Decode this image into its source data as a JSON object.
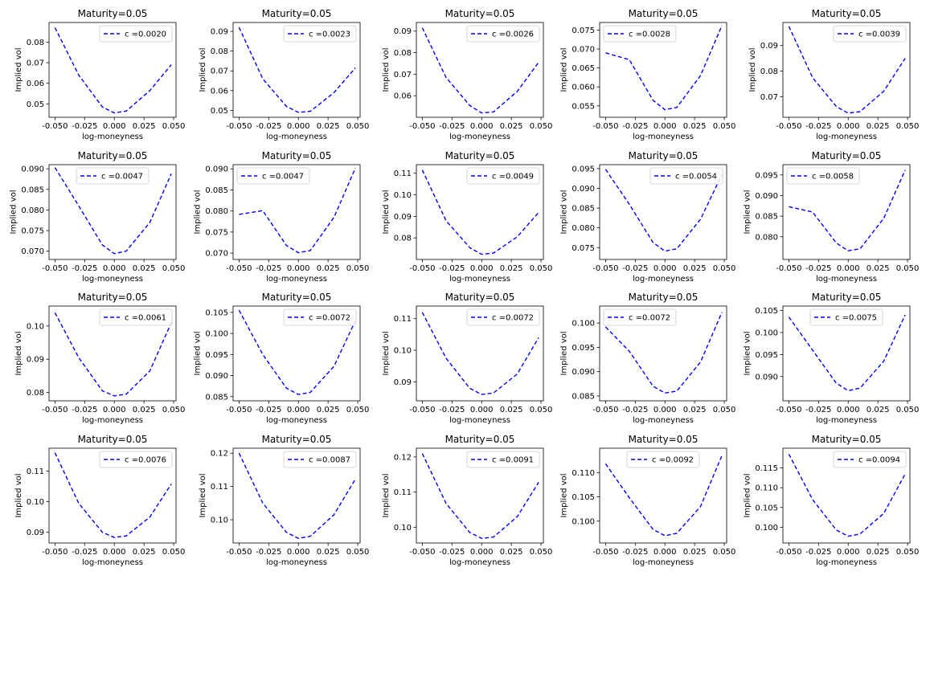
{
  "figure": {
    "rows": 4,
    "cols": 5,
    "background": "#ffffff",
    "line_color": "#0000ff",
    "line_style": "dashed"
  },
  "chart_data": [
    {
      "type": "line",
      "title": "Maturity=0.05",
      "xlabel": "log-moneyness",
      "ylabel": "Implied vol",
      "xlim": [
        -0.055,
        0.052
      ],
      "ylim": [
        0.0435,
        0.0895
      ],
      "xticks": [
        "-0.050",
        "-0.025",
        "0.000",
        "0.025",
        "0.050"
      ],
      "yticks": [
        "0.05",
        "0.06",
        "0.07",
        "0.08"
      ],
      "legend_loc": "upper right",
      "series": [
        {
          "name": "c =0.0020",
          "x": [
            -0.05,
            -0.03,
            -0.01,
            0.0,
            0.01,
            0.03,
            0.048
          ],
          "y": [
            0.087,
            0.064,
            0.0485,
            0.0456,
            0.0465,
            0.0565,
            0.069
          ]
        }
      ]
    },
    {
      "type": "line",
      "title": "Maturity=0.05",
      "xlabel": "log-moneyness",
      "ylabel": "Implied vol",
      "xlim": [
        -0.055,
        0.052
      ],
      "ylim": [
        0.0465,
        0.0945
      ],
      "xticks": [
        "-0.050",
        "-0.025",
        "0.000",
        "0.025",
        "0.050"
      ],
      "yticks": [
        "0.05",
        "0.06",
        "0.07",
        "0.08",
        "0.09"
      ],
      "legend_loc": "upper right",
      "series": [
        {
          "name": "c =0.0023",
          "x": [
            -0.05,
            -0.03,
            -0.01,
            0.0,
            0.01,
            0.03,
            0.048
          ],
          "y": [
            0.092,
            0.066,
            0.052,
            0.049,
            0.0495,
            0.059,
            0.0715
          ]
        }
      ]
    },
    {
      "type": "line",
      "title": "Maturity=0.05",
      "xlabel": "log-moneyness",
      "ylabel": "Implied vol",
      "xlim": [
        -0.055,
        0.052
      ],
      "ylim": [
        0.05,
        0.094
      ],
      "xticks": [
        "-0.050",
        "-0.025",
        "0.000",
        "0.025",
        "0.050"
      ],
      "yticks": [
        "0.06",
        "0.07",
        "0.08",
        "0.09"
      ],
      "legend_loc": "upper right",
      "series": [
        {
          "name": "c =0.0026",
          "x": [
            -0.05,
            -0.03,
            -0.01,
            0.0,
            0.01,
            0.03,
            0.048
          ],
          "y": [
            0.0915,
            0.0685,
            0.0555,
            0.052,
            0.0525,
            0.062,
            0.0755
          ]
        }
      ]
    },
    {
      "type": "line",
      "title": "Maturity=0.05",
      "xlabel": "log-moneyness",
      "ylabel": "Implied vol",
      "xlim": [
        -0.055,
        0.052
      ],
      "ylim": [
        0.052,
        0.077
      ],
      "xticks": [
        "-0.050",
        "-0.025",
        "0.000",
        "0.025",
        "0.050"
      ],
      "yticks": [
        "0.055",
        "0.060",
        "0.065",
        "0.070",
        "0.075"
      ],
      "legend_loc": "upper left",
      "series": [
        {
          "name": "c =0.0028",
          "x": [
            -0.05,
            -0.03,
            -0.01,
            0.0,
            0.01,
            0.03,
            0.048
          ],
          "y": [
            0.069,
            0.0672,
            0.0565,
            0.054,
            0.0546,
            0.063,
            0.0762
          ]
        }
      ]
    },
    {
      "type": "line",
      "title": "Maturity=0.05",
      "xlabel": "log-moneyness",
      "ylabel": "Implied vol",
      "xlim": [
        -0.055,
        0.052
      ],
      "ylim": [
        0.062,
        0.099
      ],
      "xticks": [
        "-0.050",
        "-0.025",
        "0.000",
        "0.025",
        "0.050"
      ],
      "yticks": [
        "0.07",
        "0.08",
        "0.09"
      ],
      "legend_loc": "upper right",
      "series": [
        {
          "name": "c =0.0039",
          "x": [
            -0.05,
            -0.03,
            -0.01,
            0.0,
            0.01,
            0.03,
            0.048
          ],
          "y": [
            0.0975,
            0.0775,
            0.0662,
            0.0636,
            0.0642,
            0.0722,
            0.085
          ]
        }
      ]
    },
    {
      "type": "line",
      "title": "Maturity=0.05",
      "xlabel": "log-moneyness",
      "ylabel": "Implied vol",
      "xlim": [
        -0.055,
        0.052
      ],
      "ylim": [
        0.068,
        0.091
      ],
      "xticks": [
        "-0.050",
        "-0.025",
        "0.000",
        "0.025",
        "0.050"
      ],
      "yticks": [
        "0.070",
        "0.075",
        "0.080",
        "0.085",
        "0.090"
      ],
      "legend_loc": "upper center",
      "series": [
        {
          "name": "c =0.0047",
          "x": [
            -0.05,
            -0.03,
            -0.01,
            0.0,
            0.01,
            0.03,
            0.048
          ],
          "y": [
            0.0903,
            0.081,
            0.0715,
            0.0694,
            0.07,
            0.077,
            0.0888
          ]
        }
      ]
    },
    {
      "type": "line",
      "title": "Maturity=0.05",
      "xlabel": "log-moneyness",
      "ylabel": "Implied vol",
      "xlim": [
        -0.055,
        0.052
      ],
      "ylim": [
        0.0685,
        0.091
      ],
      "xticks": [
        "-0.050",
        "-0.025",
        "0.000",
        "0.025",
        "0.050"
      ],
      "yticks": [
        "0.070",
        "0.075",
        "0.080",
        "0.085",
        "0.090"
      ],
      "legend_loc": "upper left",
      "series": [
        {
          "name": "c =0.0047",
          "x": [
            -0.05,
            -0.03,
            -0.01,
            0.0,
            0.01,
            0.03,
            0.048
          ],
          "y": [
            0.0792,
            0.0801,
            0.0718,
            0.0701,
            0.0706,
            0.0785,
            0.0902
          ]
        }
      ]
    },
    {
      "type": "line",
      "title": "Maturity=0.05",
      "xlabel": "log-moneyness",
      "ylabel": "Implied vol",
      "xlim": [
        -0.055,
        0.052
      ],
      "ylim": [
        0.07,
        0.114
      ],
      "xticks": [
        "-0.050",
        "-0.025",
        "0.000",
        "0.025",
        "0.050"
      ],
      "yticks": [
        "0.08",
        "0.09",
        "0.10",
        "0.11"
      ],
      "legend_loc": "upper right",
      "series": [
        {
          "name": "c =0.0049",
          "x": [
            -0.05,
            -0.03,
            -0.01,
            0.0,
            0.01,
            0.03,
            0.048
          ],
          "y": [
            0.1115,
            0.088,
            0.0755,
            0.0724,
            0.073,
            0.0805,
            0.0918
          ]
        }
      ]
    },
    {
      "type": "line",
      "title": "Maturity=0.05",
      "xlabel": "log-moneyness",
      "ylabel": "Implied vol",
      "xlim": [
        -0.055,
        0.052
      ],
      "ylim": [
        0.072,
        0.096
      ],
      "xticks": [
        "-0.050",
        "-0.025",
        "0.000",
        "0.025",
        "0.050"
      ],
      "yticks": [
        "0.075",
        "0.080",
        "0.085",
        "0.090",
        "0.095"
      ],
      "legend_loc": "upper right",
      "series": [
        {
          "name": "c =0.0054",
          "x": [
            -0.05,
            -0.03,
            -0.01,
            0.0,
            0.01,
            0.03,
            0.048
          ],
          "y": [
            0.0948,
            0.086,
            0.0763,
            0.0741,
            0.0747,
            0.0822,
            0.0935
          ]
        }
      ]
    },
    {
      "type": "line",
      "title": "Maturity=0.05",
      "xlabel": "log-moneyness",
      "ylabel": "Implied vol",
      "xlim": [
        -0.055,
        0.052
      ],
      "ylim": [
        0.0745,
        0.0975
      ],
      "xticks": [
        "-0.050",
        "-0.025",
        "0.000",
        "0.025",
        "0.050"
      ],
      "yticks": [
        "0.080",
        "0.085",
        "0.090",
        "0.095"
      ],
      "legend_loc": "upper left",
      "series": [
        {
          "name": "c =0.0058",
          "x": [
            -0.05,
            -0.03,
            -0.01,
            0.0,
            0.01,
            0.03,
            0.048
          ],
          "y": [
            0.0873,
            0.086,
            0.0785,
            0.0766,
            0.0771,
            0.0845,
            0.0962
          ]
        }
      ]
    },
    {
      "type": "line",
      "title": "Maturity=0.05",
      "xlabel": "log-moneyness",
      "ylabel": "Implied vol",
      "xlim": [
        -0.055,
        0.052
      ],
      "ylim": [
        0.0775,
        0.106
      ],
      "xticks": [
        "-0.050",
        "-0.025",
        "0.000",
        "0.025",
        "0.050"
      ],
      "yticks": [
        "0.08",
        "0.09",
        "0.10"
      ],
      "legend_loc": "upper right",
      "series": [
        {
          "name": "c =0.0061",
          "x": [
            -0.05,
            -0.03,
            -0.01,
            0.0,
            0.01,
            0.03,
            0.048
          ],
          "y": [
            0.104,
            0.0905,
            0.0805,
            0.079,
            0.0795,
            0.0865,
            0.101
          ]
        }
      ]
    },
    {
      "type": "line",
      "title": "Maturity=0.05",
      "xlabel": "log-moneyness",
      "ylabel": "Implied vol",
      "xlim": [
        -0.055,
        0.052
      ],
      "ylim": [
        0.084,
        0.1065
      ],
      "xticks": [
        "-0.050",
        "-0.025",
        "0.000",
        "0.025",
        "0.050"
      ],
      "yticks": [
        "0.085",
        "0.090",
        "0.095",
        "0.100",
        "0.105"
      ],
      "legend_loc": "upper right",
      "series": [
        {
          "name": "c =0.0072",
          "x": [
            -0.05,
            -0.03,
            -0.01,
            0.0,
            0.01,
            0.03,
            0.048
          ],
          "y": [
            0.1055,
            0.095,
            0.087,
            0.0855,
            0.086,
            0.0922,
            0.103
          ]
        }
      ]
    },
    {
      "type": "line",
      "title": "Maturity=0.05",
      "xlabel": "log-moneyness",
      "ylabel": "Implied vol",
      "xlim": [
        -0.055,
        0.052
      ],
      "ylim": [
        0.084,
        0.114
      ],
      "xticks": [
        "-0.050",
        "-0.025",
        "0.000",
        "0.025",
        "0.050"
      ],
      "yticks": [
        "0.09",
        "0.10",
        "0.11"
      ],
      "legend_loc": "upper right",
      "series": [
        {
          "name": "c =0.0072",
          "x": [
            -0.05,
            -0.03,
            -0.01,
            0.0,
            0.01,
            0.03,
            0.048
          ],
          "y": [
            0.112,
            0.0975,
            0.088,
            0.086,
            0.0865,
            0.0925,
            0.104
          ]
        }
      ]
    },
    {
      "type": "line",
      "title": "Maturity=0.05",
      "xlabel": "log-moneyness",
      "ylabel": "Implied vol",
      "xlim": [
        -0.055,
        0.052
      ],
      "ylim": [
        0.084,
        0.1035
      ],
      "xticks": [
        "-0.050",
        "-0.025",
        "0.000",
        "0.025",
        "0.050"
      ],
      "yticks": [
        "0.085",
        "0.090",
        "0.095",
        "0.100"
      ],
      "legend_loc": "upper left",
      "series": [
        {
          "name": "c =0.0072",
          "x": [
            -0.05,
            -0.03,
            -0.01,
            0.0,
            0.01,
            0.03,
            0.048
          ],
          "y": [
            0.0992,
            0.0942,
            0.087,
            0.0856,
            0.086,
            0.092,
            0.1022
          ]
        }
      ]
    },
    {
      "type": "line",
      "title": "Maturity=0.05",
      "xlabel": "log-moneyness",
      "ylabel": "Implied vol",
      "xlim": [
        -0.055,
        0.052
      ],
      "ylim": [
        0.0845,
        0.106
      ],
      "xticks": [
        "-0.050",
        "-0.025",
        "0.000",
        "0.025",
        "0.050"
      ],
      "yticks": [
        "0.090",
        "0.095",
        "0.100",
        "0.105"
      ],
      "legend_loc": "upper center",
      "series": [
        {
          "name": "c =0.0075",
          "x": [
            -0.05,
            -0.03,
            -0.01,
            0.0,
            0.01,
            0.03,
            0.048
          ],
          "y": [
            0.1035,
            0.096,
            0.0885,
            0.0868,
            0.0874,
            0.0935,
            0.104
          ]
        }
      ]
    },
    {
      "type": "line",
      "title": "Maturity=0.05",
      "xlabel": "log-moneyness",
      "ylabel": "Implied vol",
      "xlim": [
        -0.055,
        0.052
      ],
      "ylim": [
        0.0865,
        0.1175
      ],
      "xticks": [
        "-0.050",
        "-0.025",
        "0.000",
        "0.025",
        "0.050"
      ],
      "yticks": [
        "0.09",
        "0.10",
        "0.11"
      ],
      "legend_loc": "upper right",
      "series": [
        {
          "name": "c =0.0076",
          "x": [
            -0.05,
            -0.03,
            -0.01,
            0.0,
            0.01,
            0.03,
            0.048
          ],
          "y": [
            0.116,
            0.0995,
            0.09,
            0.0883,
            0.0888,
            0.095,
            0.1058
          ]
        }
      ]
    },
    {
      "type": "line",
      "title": "Maturity=0.05",
      "xlabel": "log-moneyness",
      "ylabel": "Implied vol",
      "xlim": [
        -0.055,
        0.052
      ],
      "ylim": [
        0.093,
        0.1215
      ],
      "xticks": [
        "-0.050",
        "-0.025",
        "0.000",
        "0.025",
        "0.050"
      ],
      "yticks": [
        "0.10",
        "0.11",
        "0.12"
      ],
      "legend_loc": "upper right",
      "series": [
        {
          "name": "c =0.0087",
          "x": [
            -0.05,
            -0.03,
            -0.01,
            0.0,
            0.01,
            0.03,
            0.048
          ],
          "y": [
            0.12,
            0.105,
            0.0962,
            0.0944,
            0.095,
            0.1015,
            0.1122
          ]
        }
      ]
    },
    {
      "type": "line",
      "title": "Maturity=0.05",
      "xlabel": "log-moneyness",
      "ylabel": "Implied vol",
      "xlim": [
        -0.055,
        0.052
      ],
      "ylim": [
        0.0955,
        0.1225
      ],
      "xticks": [
        "-0.050",
        "-0.025",
        "0.000",
        "0.025",
        "0.050"
      ],
      "yticks": [
        "0.10",
        "0.11",
        "0.12"
      ],
      "legend_loc": "upper right",
      "series": [
        {
          "name": "c =0.0091",
          "x": [
            -0.05,
            -0.03,
            -0.01,
            0.0,
            0.01,
            0.03,
            0.048
          ],
          "y": [
            0.121,
            0.1068,
            0.0985,
            0.0968,
            0.0972,
            0.103,
            0.1128
          ]
        }
      ]
    },
    {
      "type": "line",
      "title": "Maturity=0.05",
      "xlabel": "log-moneyness",
      "ylabel": "Implied vol",
      "xlim": [
        -0.055,
        0.052
      ],
      "ylim": [
        0.0955,
        0.115
      ],
      "xticks": [
        "-0.050",
        "-0.025",
        "0.000",
        "0.025",
        "0.050"
      ],
      "yticks": [
        "0.100",
        "0.105",
        "0.110"
      ],
      "legend_loc": "upper center",
      "series": [
        {
          "name": "c =0.0092",
          "x": [
            -0.05,
            -0.03,
            -0.01,
            0.0,
            0.01,
            0.03,
            0.048
          ],
          "y": [
            0.1118,
            0.1048,
            0.0983,
            0.097,
            0.0975,
            0.103,
            0.1135
          ]
        }
      ]
    },
    {
      "type": "line",
      "title": "Maturity=0.05",
      "xlabel": "log-moneyness",
      "ylabel": "Implied vol",
      "xlim": [
        -0.055,
        0.052
      ],
      "ylim": [
        0.096,
        0.12
      ],
      "xticks": [
        "-0.050",
        "-0.025",
        "0.000",
        "0.025",
        "0.050"
      ],
      "yticks": [
        "0.100",
        "0.105",
        "0.110",
        "0.115"
      ],
      "legend_loc": "upper right",
      "series": [
        {
          "name": "c =0.0094",
          "x": [
            -0.05,
            -0.03,
            -0.01,
            0.0,
            0.01,
            0.03,
            0.048
          ],
          "y": [
            0.1185,
            0.107,
            0.0993,
            0.0977,
            0.0983,
            0.1035,
            0.1135
          ]
        }
      ]
    }
  ]
}
